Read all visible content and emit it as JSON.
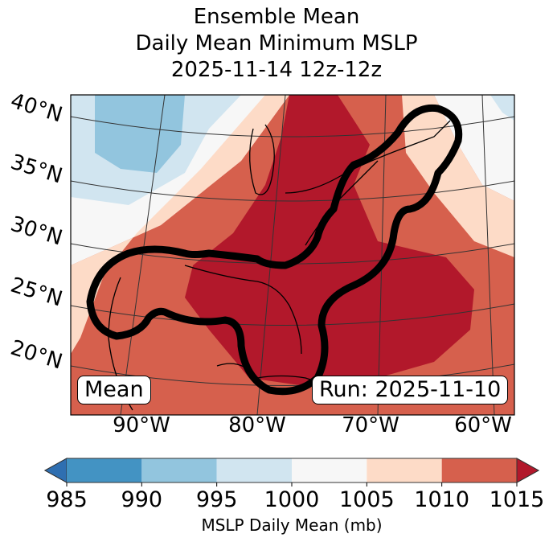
{
  "figure": {
    "title_lines": [
      "Ensemble Mean",
      "Daily Mean Minimum MSLP",
      "2025-11-14 12z-12z"
    ],
    "left_box": "Mean",
    "right_box": "Run: 2025-11-10"
  },
  "map": {
    "lat_labels": [
      "40°N",
      "35°N",
      "30°N",
      "25°N",
      "20°N"
    ],
    "lon_labels": [
      "90°W",
      "80°W",
      "70°W",
      "60°W"
    ],
    "contour_color": "#000000",
    "features": [
      "coastlines",
      "lat-lon gridlines",
      "filled MSLP contours",
      "bold outline contour"
    ]
  },
  "colorbar": {
    "label": "MSLP Daily Mean (mb)",
    "ticks": [
      "985",
      "990",
      "995",
      "1000",
      "1005",
      "1010",
      "1015"
    ],
    "extend": "both",
    "under_color": "#2f6fb1",
    "over_color": "#b2182b",
    "segments": [
      {
        "from": 985,
        "to": 990,
        "color": "#4393c3"
      },
      {
        "from": 990,
        "to": 995,
        "color": "#92c5de"
      },
      {
        "from": 995,
        "to": 1000,
        "color": "#d1e5f0"
      },
      {
        "from": 1000,
        "to": 1005,
        "color": "#f7f7f7"
      },
      {
        "from": 1005,
        "to": 1010,
        "color": "#fddbc7"
      },
      {
        "from": 1010,
        "to": 1015,
        "color": "#d6604d"
      }
    ]
  }
}
